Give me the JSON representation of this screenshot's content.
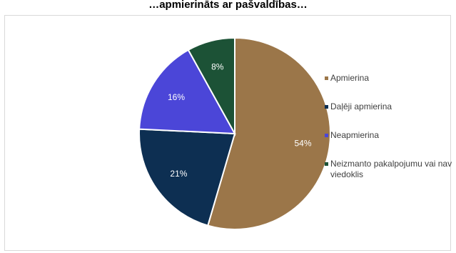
{
  "chart_data": {
    "type": "pie",
    "title": "…apmierināts ar pašvaldības…",
    "slices": [
      {
        "label": "Apmierina",
        "value": 54,
        "display": "54%",
        "color": "#9b7649"
      },
      {
        "label": "Daļēji apmierina",
        "value": 21,
        "display": "21%",
        "color": "#0d2f52"
      },
      {
        "label": "Neapmierina",
        "value": 16,
        "display": "16%",
        "color": "#4b46d8"
      },
      {
        "label": "Neizmanto pakalpojumu vai nav viedoklis",
        "value": 8,
        "display": "8%",
        "color": "#1c5236"
      }
    ],
    "legend_position": "right"
  }
}
